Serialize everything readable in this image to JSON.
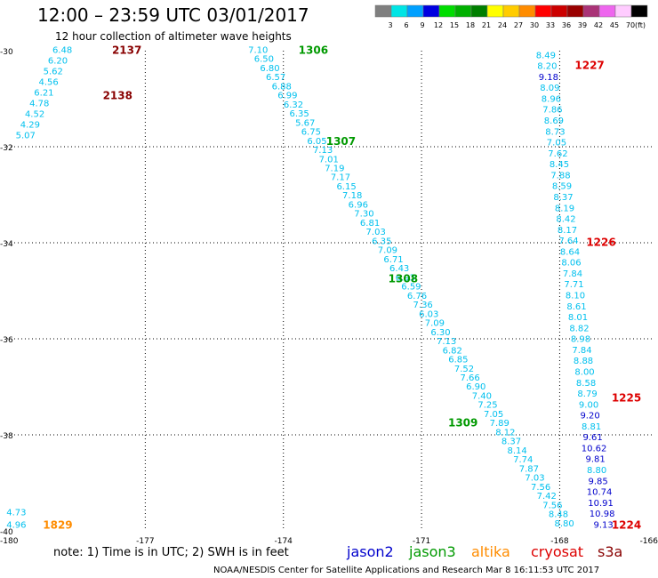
{
  "header": {
    "title": "12:00 – 23:59 UTC 03/01/2017",
    "subtitle": "12 hour collection of altimeter wave heights"
  },
  "legend": {
    "unit_label": "(ft)",
    "bins": [
      {
        "label": "3",
        "color": "#7f7f7f"
      },
      {
        "label": "6",
        "color": "#00e5e5"
      },
      {
        "label": "9",
        "color": "#00a0ff"
      },
      {
        "label": "12",
        "color": "#0000e0"
      },
      {
        "label": "15",
        "color": "#00dd00"
      },
      {
        "label": "18",
        "color": "#00b000"
      },
      {
        "label": "21",
        "color": "#007f00"
      },
      {
        "label": "24",
        "color": "#ffff00"
      },
      {
        "label": "27",
        "color": "#ffcc00"
      },
      {
        "label": "30",
        "color": "#ff8c00"
      },
      {
        "label": "33",
        "color": "#ff0000"
      },
      {
        "label": "36",
        "color": "#cc0000"
      },
      {
        "label": "39",
        "color": "#990000"
      },
      {
        "label": "42",
        "color": "#aa3377"
      },
      {
        "label": "45",
        "color": "#ee66ee"
      },
      {
        "label": "70",
        "color": "#ffccff"
      },
      {
        "label": "",
        "color": "#000000"
      }
    ]
  },
  "notes": {
    "note": "note: 1) Time is in UTC; 2) SWH is in feet",
    "footer": "NOAA/NESDIS Center for Satellite Applications and Research   Mar  8 16:11:53 UTC 2017"
  },
  "satellites": [
    {
      "name": "jason2",
      "color": "#0000cc"
    },
    {
      "name": "jason3",
      "color": "#009900"
    },
    {
      "name": "altika",
      "color": "#ff8c00"
    },
    {
      "name": "cryosat",
      "color": "#dd0000"
    },
    {
      "name": "s3a",
      "color": "#880000"
    }
  ],
  "chart_data": {
    "type": "scatter",
    "title": "12:00 – 23:59 UTC 03/01/2017",
    "subtitle": "12 hour collection of altimeter wave heights",
    "xlim": [
      -180,
      -166
    ],
    "ylim": [
      -40,
      -30
    ],
    "x_ticks": [
      "-180",
      "-177",
      "-174",
      "-171",
      "-168",
      "-166"
    ],
    "y_ticks": [
      "-30",
      "-32",
      "-34",
      "-36",
      "-38",
      "-40"
    ],
    "x_tick_values": [
      -180,
      -177,
      -174,
      -171,
      -168,
      -166
    ],
    "y_tick_values": [
      -30,
      -32,
      -34,
      -36,
      -38,
      -40
    ],
    "grid": true,
    "unit": "ft",
    "tracks": [
      {
        "satellite": "s3a",
        "color_class": "cyan",
        "start": [
          -178.8,
          -29.97
        ],
        "end": [
          -179.6,
          -31.75
        ],
        "values": [
          "6.48",
          "6.20",
          "5.62",
          "4.56",
          "6.21",
          "4.78",
          "4.52",
          "4.29",
          "5.07"
        ],
        "time_labels": [
          {
            "text": "2137",
            "lon": -177.4,
            "lat": -29.97
          },
          {
            "text": "2138",
            "lon": -177.6,
            "lat": -30.92
          }
        ]
      },
      {
        "satellite": "jason3",
        "color_class": "cyan",
        "start": [
          -174.55,
          -29.97
        ],
        "end": [
          -167.9,
          -39.83
        ],
        "values": [
          "7.10",
          "6.50",
          "6.80",
          "6.57",
          "6.88",
          "6.99",
          "6.32",
          "6.35",
          "5.67",
          "6.75",
          "6.05",
          "7.13",
          "7.01",
          "7.19",
          "7.17",
          "6.15",
          "7.18",
          "6.96",
          "7.30",
          "6.81",
          "7.03",
          "6.35",
          "7.09",
          "6.71",
          "6.43",
          "6.93",
          "6.59",
          "6.76",
          "7.36",
          "6.03",
          "7.09",
          "6.30",
          "7.13",
          "6.82",
          "6.85",
          "7.52",
          "7.66",
          "6.90",
          "7.40",
          "7.25",
          "7.05",
          "7.89",
          "8.12",
          "8.37",
          "8.14",
          "7.74",
          "7.87",
          "7.03",
          "7.56",
          "7.42",
          "7.56",
          "8.48",
          "8.80"
        ],
        "time_labels": [
          {
            "text": "1306",
            "lon": -173.35,
            "lat": -29.97
          },
          {
            "text": "1307",
            "lon": -172.75,
            "lat": -31.87
          },
          {
            "text": "1308",
            "lon": -171.4,
            "lat": -34.73
          },
          {
            "text": "1309",
            "lon": -170.1,
            "lat": -37.73
          }
        ]
      },
      {
        "satellite": "cryosat",
        "color_class": "mixed",
        "start": [
          -168.3,
          -30.08
        ],
        "end": [
          -167.05,
          -39.86
        ],
        "values": [
          "8.49",
          "8.20",
          "9.18",
          "8.09",
          "8.96",
          "7.86",
          "8.69",
          "8.73",
          "7.05",
          "7.62",
          "8.45",
          "7.88",
          "8.59",
          "8.37",
          "8.19",
          "8.42",
          "8.17",
          "7.64",
          "8.64",
          "8.06",
          "7.84",
          "7.71",
          "8.10",
          "8.61",
          "8.01",
          "8.82",
          "8.98",
          "7.84",
          "8.88",
          "8.00",
          "8.58",
          "8.79",
          "9.00",
          "9.20",
          "8.81",
          "9.61",
          "10.62",
          "9.81",
          "8.80",
          "9.85",
          "10.74",
          "10.91",
          "10.98",
          "9.13"
        ],
        "blue_indices": [
          2,
          33,
          35,
          36,
          37,
          39,
          40,
          41,
          42,
          43
        ],
        "time_labels": [
          {
            "text": "1227",
            "lon": -167.35,
            "lat": -30.29
          },
          {
            "text": "1226",
            "lon": -167.1,
            "lat": -33.97
          },
          {
            "text": "1225",
            "lon": -166.55,
            "lat": -37.21
          },
          {
            "text": "1224",
            "lon": -166.55,
            "lat": -39.86
          }
        ]
      },
      {
        "satellite": "altika",
        "color_class": "cyan",
        "start": [
          -179.8,
          -39.6
        ],
        "end": [
          -179.8,
          -39.86
        ],
        "values": [
          "4.73",
          "4.96"
        ],
        "time_labels": [
          {
            "text": "1829",
            "lon": -178.9,
            "lat": -39.86
          }
        ]
      }
    ]
  }
}
